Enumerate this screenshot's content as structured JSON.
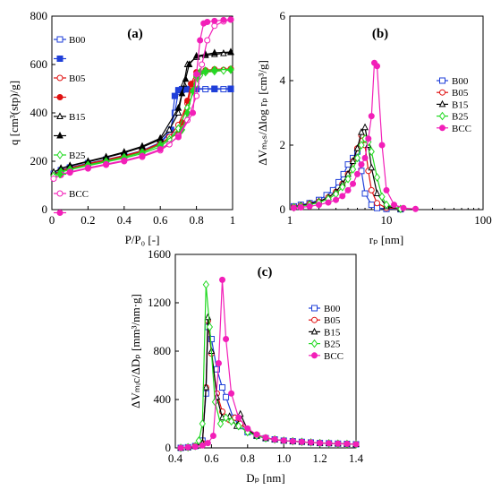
{
  "colors": {
    "B00": "#1f3fd9",
    "B05": "#e01010",
    "B15": "#000000",
    "B25": "#22d922",
    "BCC": "#f21fb8"
  },
  "chart_data": [
    {
      "panel": "(a)",
      "type": "line",
      "title": "",
      "xlabel": "P/P₀ [-]",
      "ylabel": "q  [cm³(stp)/g]",
      "xlim": [
        0,
        1
      ],
      "ylim": [
        0,
        800
      ],
      "xticks": [
        "0",
        "0.2",
        "0.4",
        "0.6",
        "0.8",
        "1"
      ],
      "yticks": [
        "0",
        "200",
        "400",
        "600",
        "800"
      ],
      "legend_position": "left",
      "series": [
        {
          "name": "B00",
          "marker": "square",
          "variant": "adsorption",
          "x": [
            0.01,
            0.05,
            0.1,
            0.2,
            0.3,
            0.4,
            0.5,
            0.6,
            0.65,
            0.68,
            0.7,
            0.72,
            0.75,
            0.8,
            0.85,
            0.9,
            0.95,
            0.99
          ],
          "y": [
            148,
            162,
            172,
            190,
            205,
            222,
            242,
            275,
            315,
            400,
            488,
            495,
            497,
            498,
            498,
            498,
            498,
            498
          ]
        },
        {
          "name": "",
          "marker": "square-filled",
          "variant": "desorption",
          "x": [
            0.99,
            0.9,
            0.8,
            0.75,
            0.72,
            0.7,
            0.68,
            0.66,
            0.6,
            0.5,
            0.4,
            0.3,
            0.2,
            0.1,
            0.05
          ],
          "y": [
            500,
            500,
            500,
            499,
            498,
            494,
            470,
            330,
            278,
            244,
            224,
            207,
            192,
            174,
            163
          ]
        },
        {
          "name": "B05",
          "marker": "circle",
          "variant": "adsorption",
          "x": [
            0.01,
            0.05,
            0.1,
            0.2,
            0.3,
            0.4,
            0.5,
            0.6,
            0.65,
            0.7,
            0.75,
            0.78,
            0.8,
            0.85,
            0.9,
            0.95,
            0.99
          ],
          "y": [
            145,
            160,
            170,
            188,
            203,
            220,
            240,
            270,
            300,
            350,
            440,
            520,
            555,
            570,
            575,
            578,
            580
          ]
        },
        {
          "name": "",
          "marker": "circle-filled",
          "variant": "desorption",
          "x": [
            0.99,
            0.9,
            0.85,
            0.8,
            0.77,
            0.75,
            0.72,
            0.7,
            0.6,
            0.5,
            0.4,
            0.3,
            0.2,
            0.1,
            0.05
          ],
          "y": [
            582,
            580,
            576,
            568,
            520,
            450,
            360,
            315,
            275,
            243,
            223,
            206,
            190,
            172,
            161
          ]
        },
        {
          "name": "B15",
          "marker": "triangle",
          "variant": "adsorption",
          "x": [
            0.01,
            0.05,
            0.1,
            0.2,
            0.3,
            0.4,
            0.5,
            0.6,
            0.65,
            0.7,
            0.73,
            0.75,
            0.8,
            0.85,
            0.9,
            0.95,
            0.99
          ],
          "y": [
            155,
            170,
            180,
            198,
            215,
            235,
            258,
            290,
            330,
            400,
            520,
            600,
            630,
            638,
            642,
            646,
            650
          ]
        },
        {
          "name": "",
          "marker": "triangle-filled",
          "variant": "desorption",
          "x": [
            0.99,
            0.9,
            0.85,
            0.8,
            0.76,
            0.74,
            0.72,
            0.7,
            0.6,
            0.5,
            0.4,
            0.3,
            0.2,
            0.1,
            0.05
          ],
          "y": [
            652,
            648,
            642,
            635,
            600,
            540,
            480,
            420,
            295,
            262,
            238,
            218,
            200,
            182,
            171
          ]
        },
        {
          "name": "B25",
          "marker": "diamond",
          "variant": "adsorption",
          "x": [
            0.01,
            0.05,
            0.1,
            0.2,
            0.3,
            0.4,
            0.5,
            0.6,
            0.65,
            0.7,
            0.75,
            0.8,
            0.82,
            0.85,
            0.9,
            0.95,
            0.99
          ],
          "y": [
            140,
            155,
            165,
            182,
            197,
            213,
            232,
            260,
            290,
            335,
            420,
            520,
            555,
            568,
            572,
            575,
            578
          ]
        },
        {
          "name": "",
          "marker": "diamond-filled",
          "variant": "desorption",
          "x": [
            0.99,
            0.9,
            0.85,
            0.82,
            0.8,
            0.78,
            0.75,
            0.72,
            0.6,
            0.5,
            0.4,
            0.3,
            0.2,
            0.1,
            0.05
          ],
          "y": [
            580,
            578,
            574,
            568,
            550,
            490,
            400,
            330,
            268,
            237,
            217,
            200,
            185,
            167,
            157
          ]
        },
        {
          "name": "BCC",
          "marker": "circle",
          "variant": "adsorption",
          "x": [
            0.01,
            0.05,
            0.1,
            0.2,
            0.3,
            0.4,
            0.5,
            0.6,
            0.65,
            0.7,
            0.75,
            0.8,
            0.83,
            0.86,
            0.9,
            0.95,
            0.99
          ],
          "y": [
            128,
            143,
            153,
            170,
            185,
            200,
            218,
            245,
            270,
            305,
            370,
            470,
            600,
            700,
            760,
            778,
            785
          ]
        },
        {
          "name": "",
          "marker": "circle-filled",
          "variant": "desorption",
          "x": [
            0.99,
            0.95,
            0.9,
            0.86,
            0.84,
            0.82,
            0.8,
            0.78,
            0.7,
            0.6,
            0.5,
            0.4,
            0.3,
            0.2,
            0.1,
            0.05
          ],
          "y": [
            786,
            784,
            780,
            776,
            770,
            700,
            560,
            400,
            300,
            250,
            222,
            203,
            188,
            173,
            156,
            146
          ]
        }
      ]
    },
    {
      "panel": "(b)",
      "type": "line",
      "title": "",
      "xlabel": "rₚ [nm]",
      "ylabel": "ΔVₘₑₛ/Δlog rₚ [cm³/g]",
      "xscale": "log",
      "xlim": [
        1,
        100
      ],
      "ylim": [
        0,
        6
      ],
      "xticks": [
        "1",
        "10",
        "100"
      ],
      "yticks": [
        "0",
        "2",
        "4",
        "6"
      ],
      "legend_position": "right",
      "series": [
        {
          "name": "B00",
          "marker": "square",
          "x": [
            1.1,
            1.3,
            1.6,
            2.0,
            2.4,
            2.8,
            3.2,
            3.6,
            4.0,
            4.5,
            5.0,
            5.5,
            6.0,
            7.0,
            8.0,
            10.0,
            14.0
          ],
          "y": [
            0.1,
            0.15,
            0.2,
            0.3,
            0.45,
            0.6,
            0.85,
            1.1,
            1.4,
            1.6,
            1.8,
            1.2,
            0.5,
            0.15,
            0.05,
            0.02,
            0.01
          ]
        },
        {
          "name": "B05",
          "marker": "circle",
          "x": [
            1.1,
            1.3,
            1.6,
            2.0,
            2.5,
            3.0,
            3.5,
            4.0,
            4.5,
            5.0,
            5.5,
            6.0,
            6.5,
            7.0,
            8.0,
            10.0,
            14.0
          ],
          "y": [
            0.08,
            0.12,
            0.18,
            0.25,
            0.38,
            0.55,
            0.8,
            1.1,
            1.5,
            1.9,
            2.3,
            2.0,
            1.2,
            0.6,
            0.2,
            0.05,
            0.02
          ]
        },
        {
          "name": "B15",
          "marker": "triangle",
          "x": [
            1.1,
            1.3,
            1.6,
            2.0,
            2.5,
            3.0,
            3.5,
            4.0,
            4.5,
            5.0,
            5.5,
            6.0,
            6.5,
            7.0,
            8.0,
            10.0,
            14.0
          ],
          "y": [
            0.08,
            0.12,
            0.18,
            0.25,
            0.38,
            0.55,
            0.8,
            1.1,
            1.5,
            1.9,
            2.4,
            2.55,
            2.0,
            1.3,
            0.5,
            0.1,
            0.02
          ]
        },
        {
          "name": "B25",
          "marker": "diamond",
          "x": [
            1.1,
            1.3,
            1.6,
            2.0,
            2.5,
            3.0,
            3.5,
            4.0,
            4.5,
            5.0,
            5.5,
            6.0,
            6.5,
            7.0,
            8.0,
            9.0,
            10.0,
            14.0
          ],
          "y": [
            0.07,
            0.1,
            0.15,
            0.22,
            0.33,
            0.48,
            0.7,
            0.95,
            1.25,
            1.6,
            2.0,
            2.2,
            2.1,
            1.8,
            1.0,
            0.4,
            0.15,
            0.02
          ]
        },
        {
          "name": "BCC",
          "marker": "circle-filled",
          "x": [
            1.1,
            1.3,
            1.6,
            2.0,
            2.5,
            3.0,
            3.5,
            4.0,
            4.5,
            5.0,
            5.5,
            6.0,
            6.5,
            7.0,
            7.5,
            8.0,
            9.0,
            10.0,
            12.0,
            15.0,
            20.0
          ],
          "y": [
            0.05,
            0.07,
            0.1,
            0.15,
            0.22,
            0.3,
            0.42,
            0.6,
            0.8,
            1.1,
            1.4,
            1.6,
            2.2,
            2.9,
            4.55,
            4.45,
            2.0,
            0.6,
            0.15,
            0.05,
            0.02
          ]
        }
      ]
    },
    {
      "panel": "(c)",
      "type": "line",
      "title": "",
      "xlabel": "Dₚ [nm]",
      "ylabel": "ΔVₘᵢc/ΔDₚ [mm³/nm·g]",
      "xlim": [
        0.4,
        1.4
      ],
      "ylim": [
        0,
        1600
      ],
      "xticks": [
        "0.4",
        "0.6",
        "0.8",
        "1.0",
        "1.2",
        "1.4"
      ],
      "yticks": [
        "0",
        "400",
        "800",
        "1200",
        "1600"
      ],
      "legend_position": "right",
      "series": [
        {
          "name": "B00",
          "marker": "square",
          "x": [
            0.43,
            0.47,
            0.51,
            0.55,
            0.57,
            0.58,
            0.6,
            0.63,
            0.66,
            0.68,
            0.72,
            0.76,
            0.8,
            0.85,
            0.9,
            0.95,
            1.0,
            1.05,
            1.1,
            1.15,
            1.2,
            1.25,
            1.3,
            1.35,
            1.4
          ],
          "y": [
            0,
            5,
            15,
            60,
            450,
            1000,
            900,
            650,
            500,
            420,
            250,
            180,
            130,
            100,
            80,
            70,
            60,
            55,
            50,
            45,
            40,
            38,
            35,
            33,
            30
          ]
        },
        {
          "name": "B05",
          "marker": "circle",
          "x": [
            0.43,
            0.47,
            0.51,
            0.55,
            0.57,
            0.58,
            0.6,
            0.63,
            0.66,
            0.7,
            0.73,
            0.76,
            0.8,
            0.85,
            0.9,
            0.95,
            1.0,
            1.05,
            1.1,
            1.15,
            1.2,
            1.25,
            1.3,
            1.35,
            1.4
          ],
          "y": [
            0,
            5,
            15,
            40,
            500,
            1050,
            780,
            450,
            300,
            230,
            250,
            200,
            150,
            110,
            85,
            70,
            60,
            55,
            50,
            45,
            40,
            38,
            35,
            33,
            30
          ]
        },
        {
          "name": "B15",
          "marker": "triangle",
          "x": [
            0.43,
            0.47,
            0.51,
            0.55,
            0.57,
            0.58,
            0.6,
            0.63,
            0.66,
            0.7,
            0.74,
            0.76,
            0.8,
            0.85,
            0.9,
            0.95,
            1.0,
            1.05,
            1.1,
            1.15,
            1.2,
            1.25,
            1.3,
            1.35,
            1.4
          ],
          "y": [
            0,
            5,
            15,
            40,
            500,
            1080,
            800,
            420,
            250,
            260,
            180,
            280,
            150,
            100,
            80,
            70,
            60,
            55,
            50,
            45,
            40,
            38,
            35,
            33,
            30
          ]
        },
        {
          "name": "B25",
          "marker": "diamond",
          "x": [
            0.43,
            0.47,
            0.51,
            0.53,
            0.55,
            0.57,
            0.59,
            0.62,
            0.65,
            0.68,
            0.71,
            0.75,
            0.8,
            0.85,
            0.9,
            0.95,
            1.0,
            1.05,
            1.1,
            1.15,
            1.2,
            1.25,
            1.3,
            1.35,
            1.4
          ],
          "y": [
            0,
            5,
            15,
            60,
            200,
            1350,
            1000,
            380,
            200,
            250,
            220,
            180,
            130,
            100,
            80,
            70,
            60,
            55,
            50,
            45,
            40,
            38,
            35,
            33,
            30
          ]
        },
        {
          "name": "BCC",
          "marker": "circle-filled",
          "x": [
            0.43,
            0.47,
            0.51,
            0.55,
            0.58,
            0.61,
            0.64,
            0.66,
            0.68,
            0.71,
            0.75,
            0.8,
            0.85,
            0.9,
            0.95,
            1.0,
            1.05,
            1.1,
            1.15,
            1.2,
            1.25,
            1.3,
            1.35,
            1.4
          ],
          "y": [
            0,
            5,
            10,
            20,
            40,
            100,
            700,
            1390,
            900,
            450,
            250,
            160,
            110,
            85,
            70,
            60,
            55,
            50,
            45,
            40,
            38,
            35,
            33,
            30
          ]
        }
      ]
    }
  ]
}
